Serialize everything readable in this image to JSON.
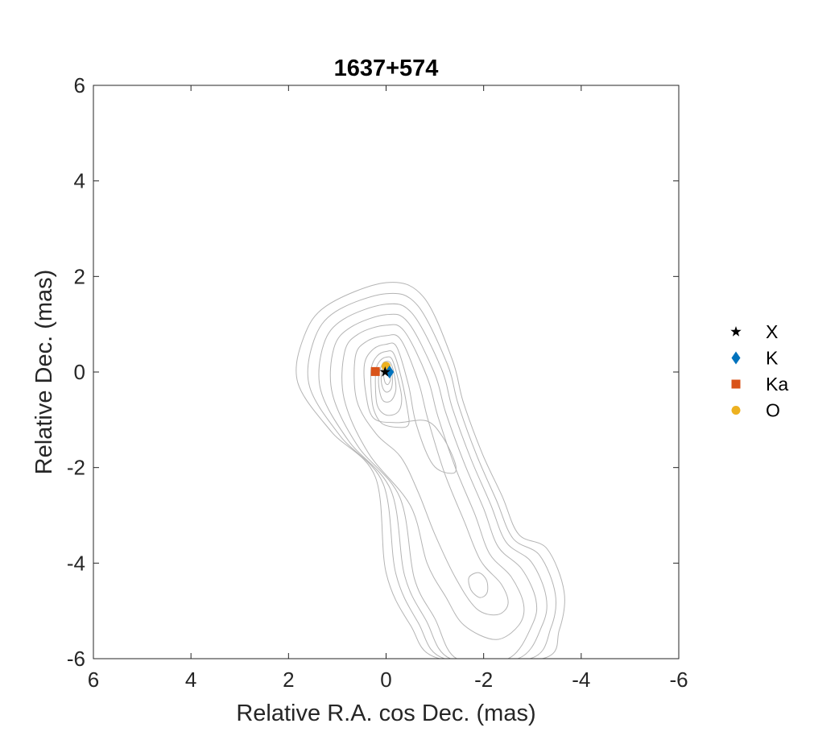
{
  "chart_data": {
    "type": "scatter",
    "title": "1637+574",
    "xlabel": "Relative R.A. cos Dec. (mas)",
    "ylabel": "Relative Dec. (mas)",
    "xlim": [
      6,
      -6
    ],
    "ylim": [
      -6,
      6
    ],
    "x_reversed": true,
    "xticks": [
      6,
      4,
      2,
      0,
      -2,
      -4,
      -6
    ],
    "yticks": [
      -6,
      -4,
      -2,
      0,
      2,
      4,
      6
    ],
    "xtick_labels": [
      "6",
      "4",
      "2",
      "0",
      "-2",
      "-4",
      "-6"
    ],
    "ytick_labels": [
      "-6",
      "-4",
      "-2",
      "0",
      "2",
      "4",
      "6"
    ],
    "grid": false,
    "legend_position": "outside-right",
    "series": [
      {
        "name": "X",
        "marker": "star",
        "color": "#000000",
        "points": [
          [
            0.02,
            0.0
          ]
        ]
      },
      {
        "name": "K",
        "marker": "diamond",
        "color": "#0072BD",
        "points": [
          [
            -0.07,
            0.0
          ]
        ]
      },
      {
        "name": "Ka",
        "marker": "square",
        "color": "#D95319",
        "points": [
          [
            0.22,
            0.01
          ]
        ]
      },
      {
        "name": "O",
        "marker": "circle",
        "color": "#EDB120",
        "points": [
          [
            0.0,
            0.12
          ]
        ]
      }
    ],
    "contours": {
      "color": "#b4b4b4",
      "core": {
        "x": -0.05,
        "y": -0.08
      },
      "secondary_peak": {
        "x": -1.88,
        "y": -4.45
      },
      "levels": [
        [
          [
            0.0,
            1.87
          ],
          [
            -0.76,
            1.58
          ],
          [
            -1.35,
            0.28
          ],
          [
            -1.58,
            -0.62
          ],
          [
            -1.97,
            -1.7
          ],
          [
            -2.38,
            -2.6
          ],
          [
            -2.72,
            -3.4
          ],
          [
            -3.3,
            -3.7
          ],
          [
            -3.65,
            -4.6
          ],
          [
            -3.55,
            -5.4
          ],
          [
            -3.2,
            -6.0
          ],
          [
            -1.1,
            -6.0
          ],
          [
            -0.5,
            -5.3
          ],
          [
            0.0,
            -4.2
          ],
          [
            0.22,
            -2.2
          ],
          [
            1.12,
            -1.25
          ],
          [
            1.81,
            -0.22
          ],
          [
            1.68,
            0.75
          ],
          [
            1.2,
            1.4
          ]
        ],
        [
          [
            0.0,
            1.64
          ],
          [
            -0.64,
            1.4
          ],
          [
            -1.25,
            0.18
          ],
          [
            -1.48,
            -0.68
          ],
          [
            -1.86,
            -1.75
          ],
          [
            -2.26,
            -2.68
          ],
          [
            -2.6,
            -3.48
          ],
          [
            -3.15,
            -3.84
          ],
          [
            -3.47,
            -4.65
          ],
          [
            -3.38,
            -5.35
          ],
          [
            -2.95,
            -6.0
          ],
          [
            -1.2,
            -6.0
          ],
          [
            -0.66,
            -5.25
          ],
          [
            -0.2,
            -4.22
          ],
          [
            0.06,
            -2.34
          ],
          [
            0.94,
            -1.34
          ],
          [
            1.57,
            -0.3
          ],
          [
            1.48,
            0.66
          ],
          [
            1.04,
            1.26
          ]
        ],
        [
          [
            0.0,
            1.42
          ],
          [
            -0.54,
            1.22
          ],
          [
            -1.13,
            0.08
          ],
          [
            -1.36,
            -0.76
          ],
          [
            -1.74,
            -1.82
          ],
          [
            -2.14,
            -2.76
          ],
          [
            -2.46,
            -3.56
          ],
          [
            -2.98,
            -3.98
          ],
          [
            -3.28,
            -4.7
          ],
          [
            -3.2,
            -5.3
          ],
          [
            -2.7,
            -6.0
          ],
          [
            -1.32,
            -6.0
          ],
          [
            -0.82,
            -5.2
          ],
          [
            -0.38,
            -4.26
          ],
          [
            -0.1,
            -2.48
          ],
          [
            0.77,
            -1.44
          ],
          [
            1.34,
            -0.38
          ],
          [
            1.28,
            0.58
          ],
          [
            0.88,
            1.1
          ]
        ],
        [
          [
            0.0,
            1.2
          ],
          [
            -0.45,
            1.04
          ],
          [
            -0.99,
            -0.02
          ],
          [
            -1.22,
            -0.84
          ],
          [
            -1.6,
            -1.9
          ],
          [
            -2.0,
            -2.86
          ],
          [
            -2.3,
            -3.66
          ],
          [
            -2.78,
            -4.12
          ],
          [
            -3.07,
            -4.76
          ],
          [
            -3.0,
            -5.28
          ],
          [
            -2.5,
            -6.0
          ],
          [
            -1.45,
            -6.0
          ],
          [
            -1.0,
            -5.16
          ],
          [
            -0.58,
            -4.32
          ],
          [
            -0.28,
            -2.62
          ],
          [
            0.58,
            -1.55
          ],
          [
            1.1,
            -0.46
          ],
          [
            1.07,
            0.5
          ],
          [
            0.72,
            0.94
          ]
        ],
        [
          [
            0.0,
            0.98
          ],
          [
            -0.37,
            0.86
          ],
          [
            -0.84,
            -0.1
          ],
          [
            -1.06,
            -0.92
          ],
          [
            -1.42,
            -2.0
          ],
          [
            -1.82,
            -2.98
          ],
          [
            -2.12,
            -3.8
          ],
          [
            -2.56,
            -4.28
          ],
          [
            -2.82,
            -4.86
          ],
          [
            -2.72,
            -5.3
          ],
          [
            -2.25,
            -5.6
          ],
          [
            -1.6,
            -5.3
          ],
          [
            -1.22,
            -4.7
          ],
          [
            -0.84,
            -4.0
          ],
          [
            -0.5,
            -2.8
          ],
          [
            0.36,
            -1.7
          ],
          [
            0.86,
            -0.56
          ],
          [
            0.85,
            0.42
          ],
          [
            0.56,
            0.8
          ]
        ],
        [
          [
            0.0,
            0.76
          ],
          [
            -0.3,
            0.68
          ],
          [
            -0.66,
            -0.2
          ],
          [
            -0.86,
            -1.0
          ],
          [
            -1.2,
            -2.12
          ],
          [
            -1.6,
            -3.12
          ],
          [
            -1.94,
            -3.95
          ],
          [
            -2.36,
            -4.44
          ],
          [
            -2.5,
            -4.85
          ],
          [
            -2.28,
            -5.08
          ],
          [
            -1.85,
            -4.95
          ],
          [
            -1.42,
            -4.3
          ],
          [
            -1.0,
            -3.4
          ],
          [
            -0.66,
            -2.52
          ],
          [
            -0.3,
            -1.78
          ],
          [
            0.2,
            -1.3
          ],
          [
            0.6,
            -0.6
          ],
          [
            0.63,
            0.32
          ],
          [
            0.4,
            0.64
          ]
        ],
        [
          [
            0.0,
            0.58
          ],
          [
            -0.22,
            0.52
          ],
          [
            -0.46,
            -0.28
          ],
          [
            -0.62,
            -1.1
          ],
          [
            -0.96,
            -1.94
          ],
          [
            -1.36,
            -2.12
          ],
          [
            -1.42,
            -1.92
          ],
          [
            -1.16,
            -1.36
          ],
          [
            -0.82,
            -1.02
          ],
          [
            -0.2,
            -1.06
          ],
          [
            0.26,
            -0.96
          ],
          [
            0.42,
            -0.42
          ],
          [
            0.44,
            0.18
          ],
          [
            0.26,
            0.48
          ]
        ],
        [
          [
            0.0,
            0.43
          ],
          [
            -0.16,
            0.38
          ],
          [
            -0.32,
            -0.16
          ],
          [
            -0.44,
            -0.8
          ],
          [
            -0.46,
            -1.1
          ],
          [
            -0.28,
            -1.16
          ],
          [
            0.08,
            -1.08
          ],
          [
            0.26,
            -0.76
          ],
          [
            0.31,
            -0.28
          ],
          [
            0.3,
            0.1
          ],
          [
            0.18,
            0.34
          ]
        ],
        [
          [
            0.0,
            0.31
          ],
          [
            -0.12,
            0.27
          ],
          [
            -0.24,
            -0.12
          ],
          [
            -0.32,
            -0.56
          ],
          [
            -0.24,
            -0.84
          ],
          [
            0.0,
            -0.9
          ],
          [
            0.18,
            -0.7
          ],
          [
            0.22,
            -0.24
          ],
          [
            0.2,
            0.08
          ],
          [
            0.12,
            0.24
          ]
        ],
        [
          [
            0.0,
            0.22
          ],
          [
            -0.09,
            0.19
          ],
          [
            -0.17,
            -0.06
          ],
          [
            -0.2,
            -0.38
          ],
          [
            -0.1,
            -0.6
          ],
          [
            0.06,
            -0.6
          ],
          [
            0.14,
            -0.36
          ],
          [
            0.15,
            -0.08
          ],
          [
            0.08,
            0.16
          ]
        ],
        [
          [
            -0.02,
            0.14
          ],
          [
            -0.1,
            0.08
          ],
          [
            -0.13,
            -0.16
          ],
          [
            -0.1,
            -0.36
          ],
          [
            0.0,
            -0.42
          ],
          [
            0.08,
            -0.3
          ],
          [
            0.1,
            -0.06
          ],
          [
            0.06,
            0.1
          ]
        ],
        [
          [
            -0.03,
            0.07
          ],
          [
            -0.08,
            0.0
          ],
          [
            -0.09,
            -0.16
          ],
          [
            -0.04,
            -0.26
          ],
          [
            0.02,
            -0.22
          ],
          [
            0.05,
            -0.06
          ],
          [
            0.02,
            0.05
          ]
        ],
        [
          [
            -1.7,
            -4.3
          ],
          [
            -1.9,
            -4.2
          ],
          [
            -2.06,
            -4.36
          ],
          [
            -2.07,
            -4.62
          ],
          [
            -1.92,
            -4.72
          ],
          [
            -1.74,
            -4.56
          ]
        ]
      ]
    }
  }
}
